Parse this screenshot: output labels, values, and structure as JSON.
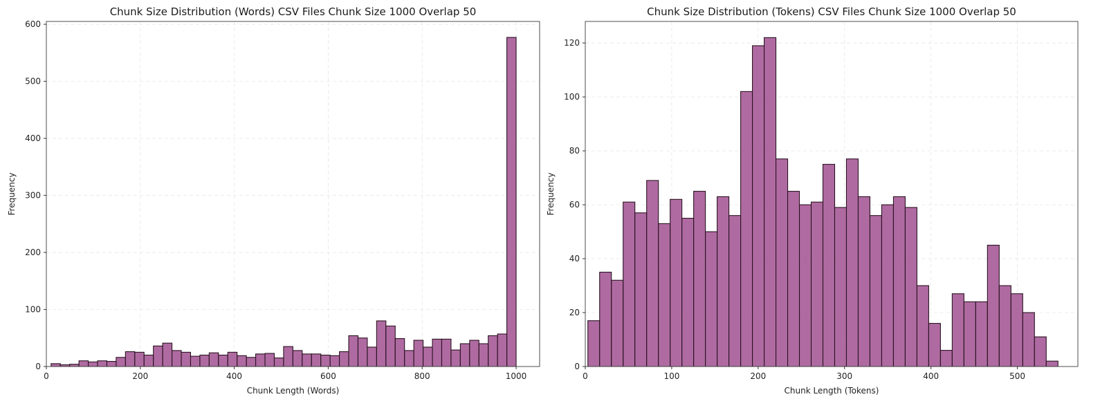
{
  "chart_data": [
    {
      "type": "bar",
      "title": "Chunk Size Distribution (Words) CSV Files Chunk Size 1000 Overlap 50",
      "xlabel": "Chunk Length (Words)",
      "ylabel": "Frequency",
      "xlim": [
        0,
        1050
      ],
      "ylim": [
        0,
        605
      ],
      "xticks": [
        0,
        200,
        400,
        600,
        800,
        1000
      ],
      "yticks": [
        0,
        100,
        200,
        300,
        400,
        500,
        600
      ],
      "grid": true,
      "bar_color": "#9e4a8c",
      "edge_color": "#2a1322",
      "bin_start": 10,
      "bin_width": 19.8,
      "values": [
        5,
        3,
        4,
        10,
        8,
        10,
        9,
        16,
        26,
        25,
        20,
        36,
        41,
        28,
        25,
        18,
        20,
        24,
        20,
        25,
        19,
        16,
        22,
        23,
        15,
        35,
        28,
        22,
        22,
        20,
        19,
        26,
        54,
        50,
        34,
        80,
        71,
        49,
        28,
        46,
        34,
        48,
        48,
        29,
        40,
        46,
        40,
        54,
        57,
        577
      ]
    },
    {
      "type": "bar",
      "title": "Chunk Size Distribution (Tokens) CSV Files Chunk Size 1000 Overlap 50",
      "xlabel": "Chunk Length (Tokens)",
      "ylabel": "Frequency",
      "xlim": [
        0,
        570
      ],
      "ylim": [
        0,
        128
      ],
      "xticks": [
        0,
        100,
        200,
        300,
        400,
        500
      ],
      "yticks": [
        0,
        20,
        40,
        60,
        80,
        100,
        120
      ],
      "grid": true,
      "bar_color": "#9e4a8c",
      "edge_color": "#2a1322",
      "bin_start": 3,
      "bin_width": 13.6,
      "values": [
        17,
        35,
        32,
        61,
        57,
        69,
        53,
        62,
        55,
        65,
        50,
        63,
        56,
        102,
        119,
        122,
        77,
        65,
        60,
        61,
        75,
        59,
        77,
        63,
        56,
        60,
        63,
        59,
        30,
        16,
        6,
        27,
        24,
        24,
        45,
        30,
        27,
        20,
        11,
        2
      ]
    }
  ]
}
